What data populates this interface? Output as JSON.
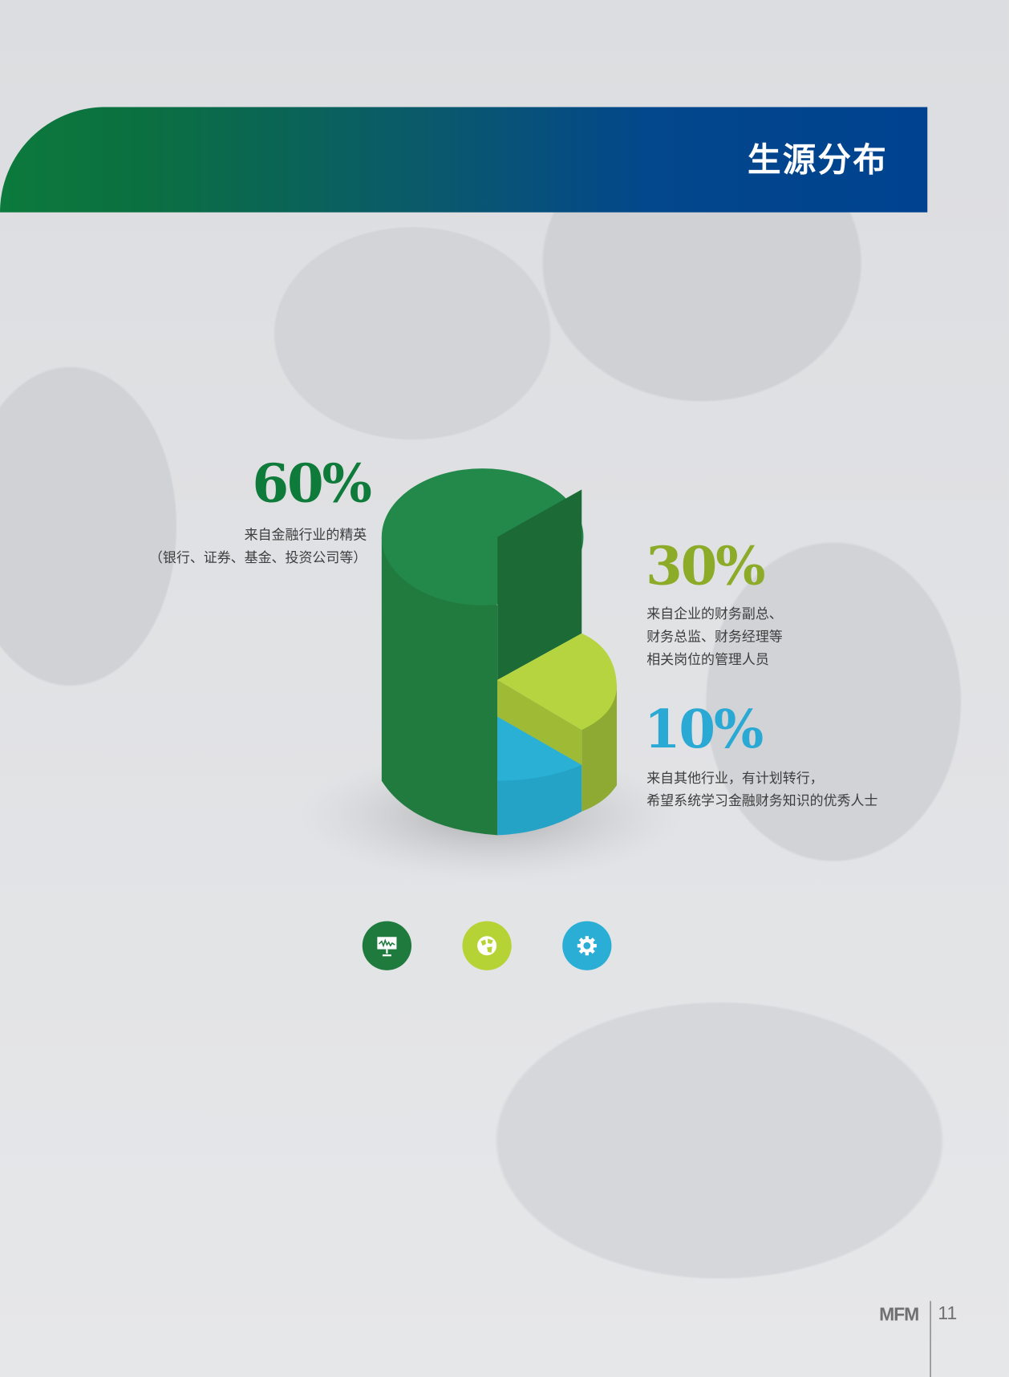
{
  "header": {
    "title": "生源分布"
  },
  "chart_data": {
    "type": "pie",
    "style": "3d-cylinder",
    "categories": [
      "来自金融行业的精英",
      "来自企业的财务副总、财务总监、财务经理等相关岗位的管理人员",
      "来自其他行业，有计划转行，希望系统学习金融财务知识的优秀人士"
    ],
    "values": [
      60,
      30,
      10
    ],
    "unit": "%",
    "colors": [
      "#22894a",
      "#b5d43f",
      "#29b0d4"
    ]
  },
  "segments": [
    {
      "percent": "60%",
      "color": "#0e7b3b",
      "lines": [
        "来自金融行业的精英",
        "（银行、证券、基金、投资公司等）"
      ]
    },
    {
      "percent": "30%",
      "color": "#8cab28",
      "lines": [
        "来自企业的财务副总、",
        "财务总监、财务经理等",
        "相关岗位的管理人员"
      ]
    },
    {
      "percent": "10%",
      "color": "#29a9d3",
      "lines": [
        "来自其他行业，有计划转行，",
        "希望系统学习金融财务知识的优秀人士"
      ]
    }
  ],
  "icons": [
    {
      "name": "presentation-chart-icon",
      "color": "#1f7a3e"
    },
    {
      "name": "globe-icon",
      "color": "#b5d334"
    },
    {
      "name": "gear-icon",
      "color": "#2aaed5"
    }
  ],
  "footer": {
    "brand": "MFM",
    "page_number": "11"
  }
}
